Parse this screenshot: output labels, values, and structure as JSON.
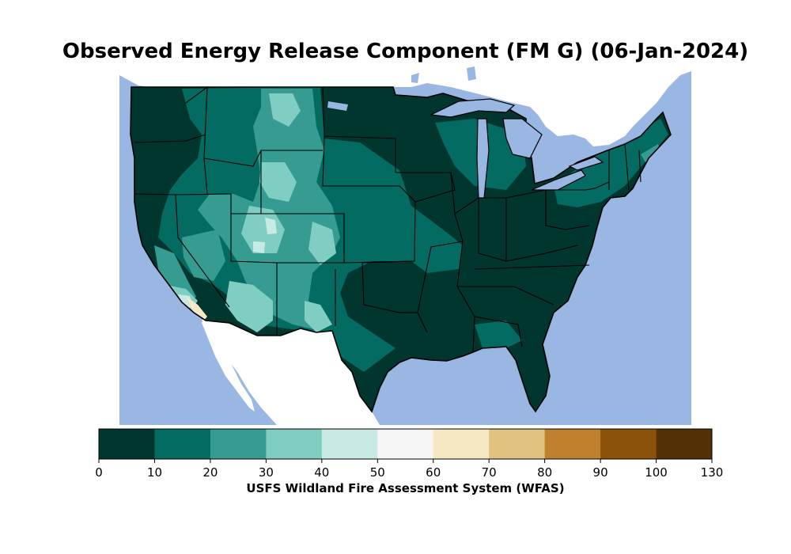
{
  "title": "Observed Energy Release Component (FM G) (06-Jan-2024)",
  "colorbar": {
    "label": "USFS Wildland Fire Assessment System (WFAS)",
    "ticks": [
      "0",
      "10",
      "20",
      "30",
      "40",
      "50",
      "60",
      "70",
      "80",
      "90",
      "100",
      "130"
    ],
    "colors": [
      "#01362e",
      "#036b62",
      "#369b91",
      "#80cdc1",
      "#c7eae5",
      "#f5f5f5",
      "#f6e8c3",
      "#dfc27d",
      "#bf812d",
      "#8c510a",
      "#543005"
    ]
  },
  "map": {
    "ocean_color": "#9ab6e2",
    "land_color": "#ffffff",
    "border_color": "#000000"
  }
}
